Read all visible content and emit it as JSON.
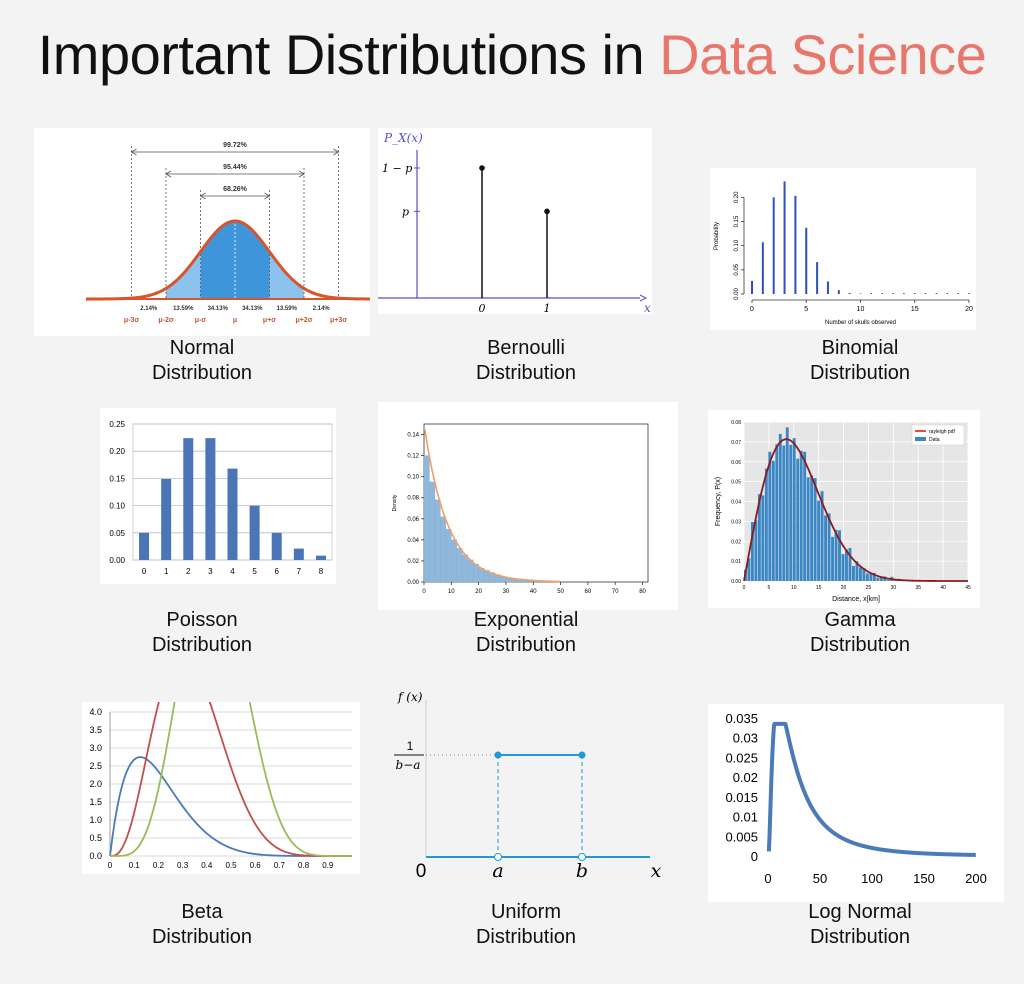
{
  "page": {
    "title_main": "Important Distributions in",
    "title_highlight": "Data Science",
    "highlight_color": "#e8776b"
  },
  "chart_data": [
    {
      "id": "normal",
      "type": "area",
      "caption": [
        "Normal",
        "Distribution"
      ],
      "brackets": [
        "99.72%",
        "95.44%",
        "68.26%"
      ],
      "segment_labels": [
        "2.14%",
        "13.59%",
        "34.13%",
        "34.13%",
        "13.59%",
        "2.14%"
      ],
      "x_labels": [
        "μ-3σ",
        "μ-2σ",
        "μ-σ",
        "μ",
        "μ+σ",
        "μ+2σ",
        "μ+3σ"
      ],
      "colors": {
        "curve": "#d9532b",
        "fill_dark": "#3f95da",
        "fill_light": "#8cc3ee",
        "labels": "#c0562d"
      }
    },
    {
      "id": "bernoulli",
      "type": "stem",
      "caption": [
        "Bernoulli",
        "Distribution"
      ],
      "y_axis_label": "P_X(x)",
      "y_ticks": [
        "1 − p",
        "p"
      ],
      "x_ticks": [
        "0",
        "1"
      ],
      "x_axis_label": "x",
      "x": [
        0,
        1
      ],
      "values": [
        0.6,
        0.4
      ],
      "colors": {
        "axis": "#5a4fcf",
        "stem": "#111111"
      }
    },
    {
      "id": "binomial",
      "type": "bar",
      "caption": [
        "Binomial",
        "Distribution"
      ],
      "xlabel": "Number of skulls observed",
      "ylabel": "Probability",
      "x": [
        0,
        1,
        2,
        3,
        4,
        5,
        6,
        7,
        8,
        9,
        10,
        11,
        12,
        13,
        14,
        15,
        16,
        17,
        18,
        19,
        20
      ],
      "values": [
        0.027,
        0.107,
        0.2,
        0.233,
        0.203,
        0.137,
        0.066,
        0.026,
        0.008,
        0.002,
        0.001,
        0,
        0,
        0,
        0,
        0,
        0,
        0,
        0,
        0,
        0
      ],
      "x_ticks": [
        0,
        5,
        10,
        15,
        20
      ],
      "y_ticks": [
        "0.00",
        "0.05",
        "0.10",
        "0.15",
        "0.20"
      ],
      "ylim": [
        0,
        0.24
      ],
      "colors": {
        "bar": "#2f4fbf"
      }
    },
    {
      "id": "poisson",
      "type": "bar",
      "caption": [
        "Poisson",
        "Distribution"
      ],
      "categories": [
        "0",
        "1",
        "2",
        "3",
        "4",
        "5",
        "6",
        "7",
        "8"
      ],
      "values": [
        0.05,
        0.149,
        0.224,
        0.224,
        0.168,
        0.1,
        0.05,
        0.021,
        0.008
      ],
      "y_ticks": [
        "0.00",
        "0.05",
        "0.10",
        "0.15",
        "0.20",
        "0.25"
      ],
      "ylim": [
        0,
        0.25
      ],
      "grid": true,
      "colors": {
        "bar": "#4a76b8"
      }
    },
    {
      "id": "exponential",
      "type": "histogram",
      "caption": [
        "Exponential",
        "Distribution"
      ],
      "ylabel": "Density",
      "x_ticks": [
        "0",
        "10",
        "20",
        "30",
        "40",
        "50",
        "60",
        "70",
        "80"
      ],
      "y_ticks": [
        "0.00",
        "0.02",
        "0.04",
        "0.06",
        "0.08",
        "0.10",
        "0.12",
        "0.14"
      ],
      "xlim": [
        0,
        82
      ],
      "ylim": [
        0,
        0.15
      ],
      "bin_width": 2,
      "values": [
        0.12,
        0.095,
        0.078,
        0.062,
        0.05,
        0.04,
        0.032,
        0.026,
        0.021,
        0.017,
        0.013,
        0.011,
        0.009,
        0.007,
        0.005,
        0.004,
        0.0035,
        0.003,
        0.0025,
        0.002,
        0.0015,
        0.0012,
        0.001
      ],
      "rate": 0.1,
      "colors": {
        "bar": "#8fb8db",
        "curve": "#f0a064"
      }
    },
    {
      "id": "gamma",
      "type": "histogram",
      "caption": [
        "Gamma",
        "Distribution"
      ],
      "legend": [
        "rayleigh pdf",
        "Data"
      ],
      "ylabel": "Frequency, P(x)",
      "xlabel": "Distance, x[km]",
      "x_ticks": [
        "0",
        "5",
        "10",
        "15",
        "20",
        "25",
        "30",
        "35",
        "40",
        "45"
      ],
      "y_ticks": [
        "0.00",
        "0.01",
        "0.02",
        "0.03",
        "0.04",
        "0.05",
        "0.06",
        "0.07",
        "0.08"
      ],
      "xlim": [
        0,
        45
      ],
      "ylim": [
        0,
        0.08
      ],
      "sigma": 8.5,
      "bin_width": 0.7,
      "colors": {
        "bar": "#3b86c4",
        "curve": "#8b1a1a",
        "bg": "#e6e6e6"
      }
    },
    {
      "id": "beta",
      "type": "line",
      "caption": [
        "Beta",
        "Distribution"
      ],
      "x_ticks": [
        "0",
        "0.1",
        "0.2",
        "0.3",
        "0.4",
        "0.5",
        "0.6",
        "0.7",
        "0.8",
        "0.9"
      ],
      "y_ticks": [
        "0.0",
        "0.5",
        "1.0",
        "1.5",
        "2.0",
        "2.5",
        "3.0",
        "3.5",
        "4.0"
      ],
      "xlim": [
        0,
        1
      ],
      "ylim": [
        0,
        4
      ],
      "series": [
        {
          "a": 2,
          "b": 8,
          "color": "#4a7ab8"
        },
        {
          "a": 4,
          "b": 8,
          "color": "#c0504d"
        },
        {
          "a": 6,
          "b": 8,
          "color": "#9bbb59"
        }
      ],
      "grid": true
    },
    {
      "id": "uniform",
      "type": "line",
      "caption": [
        "Uniform",
        "Distribution"
      ],
      "y_axis_label": "f (x)",
      "y_tick_num": "1",
      "y_tick_den": "b−a",
      "x_labels": [
        "0",
        "a",
        "b",
        "x"
      ],
      "colors": {
        "line": "#1f9ad6"
      }
    },
    {
      "id": "lognormal",
      "type": "line",
      "caption": [
        "Log Normal",
        "Distribution"
      ],
      "x_ticks": [
        "0",
        "50",
        "100",
        "150",
        "200"
      ],
      "y_ticks": [
        "0",
        "0.005",
        "0.01",
        "0.015",
        "0.02",
        "0.025",
        "0.03",
        "0.035"
      ],
      "xlim": [
        0,
        200
      ],
      "ylim": [
        0,
        0.035
      ],
      "mu": 3.2,
      "sigma": 0.95,
      "colors": {
        "line": "#4a7ab8"
      }
    }
  ]
}
